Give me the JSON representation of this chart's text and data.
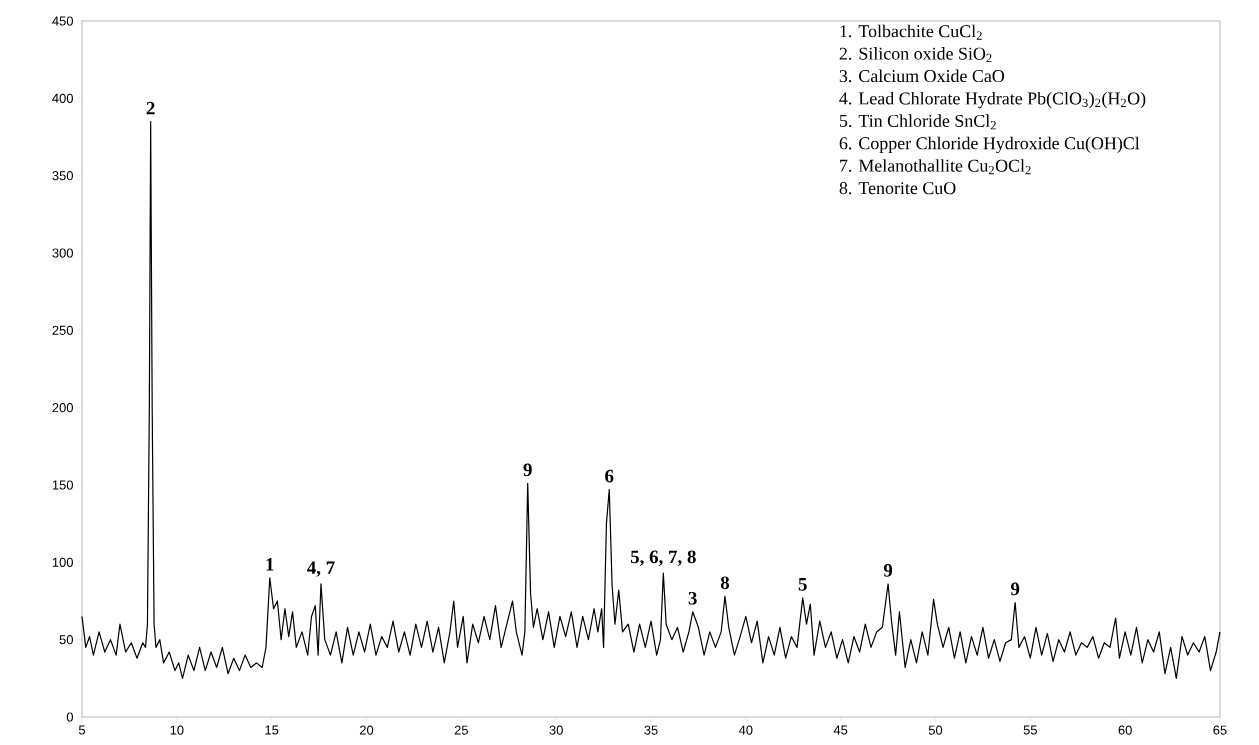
{
  "chart_data": {
    "type": "line",
    "color": "#000000",
    "marker": "none",
    "xlim": [
      5,
      65
    ],
    "ylim": [
      0,
      450
    ],
    "xticks": [
      5,
      10,
      15,
      20,
      25,
      30,
      35,
      40,
      45,
      50,
      55,
      60,
      65
    ],
    "yticks": [
      0,
      50,
      100,
      150,
      200,
      250,
      300,
      350,
      400,
      450
    ],
    "x": [
      5.0,
      5.2,
      5.4,
      5.6,
      5.9,
      6.2,
      6.5,
      6.8,
      7.0,
      7.3,
      7.6,
      7.9,
      8.2,
      8.35,
      8.45,
      8.55,
      8.62,
      8.7,
      8.8,
      8.9,
      9.1,
      9.3,
      9.6,
      9.9,
      10.1,
      10.3,
      10.6,
      10.9,
      11.2,
      11.5,
      11.8,
      12.1,
      12.4,
      12.7,
      13.0,
      13.3,
      13.6,
      13.9,
      14.2,
      14.5,
      14.7,
      14.9,
      15.1,
      15.3,
      15.5,
      15.7,
      15.9,
      16.1,
      16.3,
      16.6,
      16.9,
      17.1,
      17.3,
      17.45,
      17.6,
      17.8,
      18.1,
      18.4,
      18.7,
      19.0,
      19.3,
      19.6,
      19.9,
      20.2,
      20.5,
      20.8,
      21.1,
      21.4,
      21.7,
      22.0,
      22.3,
      22.6,
      22.9,
      23.2,
      23.5,
      23.8,
      24.1,
      24.4,
      24.6,
      24.8,
      25.1,
      25.3,
      25.6,
      25.9,
      26.2,
      26.5,
      26.8,
      27.1,
      27.4,
      27.7,
      27.9,
      28.2,
      28.35,
      28.5,
      28.65,
      28.8,
      29.0,
      29.3,
      29.6,
      29.9,
      30.2,
      30.5,
      30.8,
      31.1,
      31.4,
      31.7,
      32.0,
      32.2,
      32.4,
      32.5,
      32.65,
      32.8,
      32.95,
      33.1,
      33.3,
      33.5,
      33.8,
      34.1,
      34.4,
      34.7,
      35.0,
      35.3,
      35.5,
      35.65,
      35.8,
      36.1,
      36.4,
      36.7,
      37.0,
      37.2,
      37.5,
      37.8,
      38.1,
      38.4,
      38.7,
      38.9,
      39.1,
      39.4,
      39.7,
      40.0,
      40.3,
      40.6,
      40.9,
      41.2,
      41.5,
      41.8,
      42.1,
      42.4,
      42.7,
      43.0,
      43.2,
      43.4,
      43.6,
      43.9,
      44.2,
      44.5,
      44.8,
      45.1,
      45.4,
      45.7,
      46.0,
      46.3,
      46.6,
      46.9,
      47.2,
      47.5,
      47.7,
      47.9,
      48.1,
      48.4,
      48.7,
      49.0,
      49.3,
      49.6,
      49.9,
      50.1,
      50.4,
      50.7,
      51.0,
      51.3,
      51.6,
      51.9,
      52.2,
      52.5,
      52.8,
      53.1,
      53.4,
      53.7,
      54.0,
      54.2,
      54.4,
      54.7,
      55.0,
      55.3,
      55.6,
      55.9,
      56.2,
      56.5,
      56.8,
      57.1,
      57.4,
      57.7,
      58.0,
      58.3,
      58.6,
      58.9,
      59.2,
      59.5,
      59.7,
      60.0,
      60.3,
      60.6,
      60.9,
      61.2,
      61.5,
      61.8,
      62.1,
      62.4,
      62.7,
      63.0,
      63.3,
      63.6,
      63.9,
      64.2,
      64.5,
      64.8,
      65.0
    ],
    "values": [
      65,
      45,
      52,
      40,
      55,
      42,
      50,
      40,
      60,
      42,
      48,
      38,
      48,
      45,
      60,
      200,
      385,
      200,
      60,
      45,
      50,
      35,
      42,
      30,
      35,
      25,
      40,
      30,
      45,
      30,
      42,
      32,
      45,
      28,
      38,
      30,
      40,
      32,
      35,
      32,
      45,
      90,
      70,
      75,
      50,
      70,
      52,
      68,
      45,
      55,
      40,
      65,
      72,
      40,
      86,
      50,
      40,
      55,
      35,
      58,
      40,
      55,
      42,
      60,
      40,
      52,
      45,
      62,
      42,
      55,
      40,
      60,
      45,
      62,
      42,
      58,
      35,
      55,
      75,
      45,
      65,
      35,
      60,
      48,
      65,
      50,
      72,
      45,
      60,
      75,
      55,
      40,
      55,
      151,
      80,
      58,
      70,
      50,
      68,
      45,
      65,
      52,
      68,
      45,
      65,
      50,
      70,
      55,
      70,
      45,
      125,
      147,
      85,
      60,
      82,
      55,
      60,
      42,
      60,
      45,
      62,
      40,
      50,
      93,
      60,
      50,
      58,
      42,
      55,
      68,
      58,
      40,
      55,
      45,
      55,
      78,
      58,
      40,
      52,
      65,
      48,
      62,
      35,
      52,
      40,
      58,
      38,
      52,
      45,
      77,
      60,
      73,
      40,
      62,
      45,
      55,
      38,
      50,
      35,
      52,
      42,
      60,
      45,
      55,
      58,
      86,
      60,
      40,
      68,
      32,
      50,
      35,
      55,
      40,
      76,
      60,
      45,
      58,
      38,
      55,
      35,
      52,
      40,
      58,
      38,
      50,
      36,
      48,
      50,
      74,
      45,
      52,
      38,
      58,
      40,
      54,
      36,
      50,
      42,
      55,
      40,
      48,
      45,
      52,
      38,
      48,
      45,
      64,
      38,
      55,
      40,
      58,
      35,
      50,
      42,
      55,
      28,
      45,
      25,
      52,
      40,
      48,
      42,
      52,
      30,
      42,
      55
    ],
    "annotations": [
      {
        "text": "2",
        "x": 8.62,
        "y": 385
      },
      {
        "text": "1",
        "x": 14.9,
        "y": 90
      },
      {
        "text": "4, 7",
        "x": 17.6,
        "y": 86
      },
      {
        "text": "9",
        "x": 28.5,
        "y": 151
      },
      {
        "text": "6",
        "x": 32.8,
        "y": 147
      },
      {
        "text": "5, 6, 7, 8",
        "x": 35.65,
        "y": 93
      },
      {
        "text": "3",
        "x": 37.2,
        "y": 68
      },
      {
        "text": "8",
        "x": 38.9,
        "y": 78
      },
      {
        "text": "5",
        "x": 43.0,
        "y": 77
      },
      {
        "text": "9",
        "x": 47.5,
        "y": 86
      },
      {
        "text": "9",
        "x": 54.2,
        "y": 74
      },
      "1. Tolbachite CuCl$_{2}$",
      "2. Silicon oxide SiO$_{2}$",
      "3. Calcium Oxide CaO",
      "4. Lead Chlorate Hydrate Pb(ClO$_{3}$)$_{2}$(H$_{2}$O)",
      "5. Tin Chloride SnCl$_{2}$",
      "6. Copper Chloride Hydroxide Cu(OH)Cl",
      "7. Melanothallite Cu$_{2}$OCl$_{2}$",
      "8. Tenorite CuO"
    ]
  }
}
